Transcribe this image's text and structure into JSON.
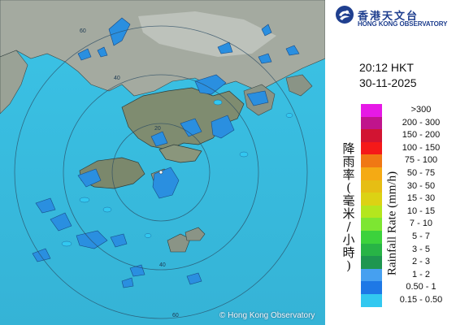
{
  "organization": {
    "name_cn": "香港天文台",
    "name_en": "HONG KONG OBSERVATORY"
  },
  "observation": {
    "time": "20:12 HKT",
    "date": "30-11-2025"
  },
  "legend": {
    "title_cn": [
      "降",
      "雨",
      "率",
      "(",
      "毫",
      "米",
      "/",
      "小",
      "時",
      ")"
    ],
    "title_en": "Rainfall Rate (mm/h)",
    "scale": [
      {
        "range": ">300",
        "color": "#e619e6"
      },
      {
        "range": "200 - 300",
        "color": "#c0148c"
      },
      {
        "range": "150 - 200",
        "color": "#d21432"
      },
      {
        "range": "100 - 150",
        "color": "#f51919"
      },
      {
        "range": "75 - 100",
        "color": "#f07814"
      },
      {
        "range": "50 - 75",
        "color": "#f5aa14"
      },
      {
        "range": "30 - 50",
        "color": "#e6be14"
      },
      {
        "range": "15 - 30",
        "color": "#dcd214"
      },
      {
        "range": "10 - 15",
        "color": "#b4e61e"
      },
      {
        "range": "7 - 10",
        "color": "#7de632"
      },
      {
        "range": "5 - 7",
        "color": "#3cd23c"
      },
      {
        "range": "3 - 5",
        "color": "#28b446"
      },
      {
        "range": "2 - 3",
        "color": "#1e9650"
      },
      {
        "range": "1 - 2",
        "color": "#46a0f0"
      },
      {
        "range": "0.50 - 1",
        "color": "#1e78e6"
      },
      {
        "range": "0.15 - 0.50",
        "color": "#32c8f0"
      }
    ]
  },
  "map": {
    "sea_color": "#38bde0",
    "land_color": "#8f9a86",
    "rain_light_color": "#2a8fe0",
    "range_ring_labels": [
      "60",
      "40",
      "20",
      "40",
      "60"
    ],
    "copyright": "© Hong Kong Observatory"
  }
}
